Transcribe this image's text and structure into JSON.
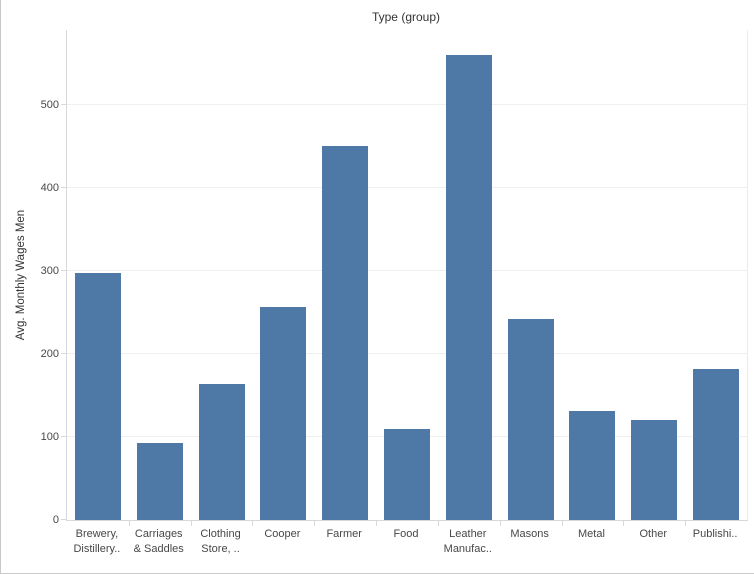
{
  "chart_title": "Type (group)",
  "y_axis_title": "Avg. Monthly Wages Men",
  "chart_data": {
    "type": "bar",
    "title": "Type (group)",
    "xlabel": "",
    "ylabel": "Avg. Monthly Wages Men",
    "ylim": [
      0,
      590
    ],
    "yticks": [
      0,
      100,
      200,
      300,
      400,
      500
    ],
    "grid": "horizontal-light",
    "legend": "none",
    "bar_color": "#4e79a7",
    "categories": [
      "Brewery, Distillery..",
      "Carriages & Saddles",
      "Clothing Store, ..",
      "Cooper",
      "Farmer",
      "Food",
      "Leather Manufac..",
      "Masons",
      "Metal",
      "Other",
      "Publishi.."
    ],
    "category_label_lines": [
      [
        "Brewery,",
        "Distillery.."
      ],
      [
        "Carriages",
        "& Saddles"
      ],
      [
        "Clothing",
        "Store, .."
      ],
      [
        "Cooper"
      ],
      [
        "Farmer"
      ],
      [
        "Food"
      ],
      [
        "Leather",
        "Manufac.."
      ],
      [
        "Masons"
      ],
      [
        "Metal"
      ],
      [
        "Other"
      ],
      [
        "Publishi.."
      ]
    ],
    "values": [
      297,
      93,
      164,
      256,
      450,
      110,
      560,
      242,
      131,
      120,
      182
    ]
  }
}
